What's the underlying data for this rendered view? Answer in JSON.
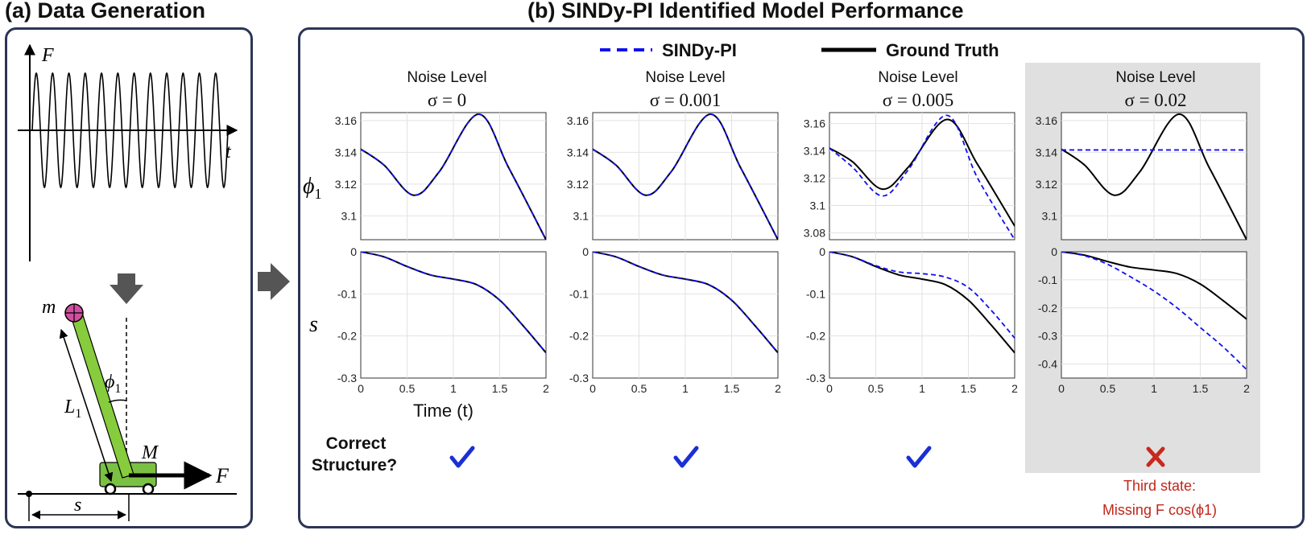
{
  "panel_a": {
    "title": "(a) Data Generation",
    "signal": {
      "y_axis_label": "F",
      "x_axis_label": "t"
    },
    "cart_pole": {
      "bob_mass_label": "m",
      "angle_label": "ϕ",
      "angle_sub": "1",
      "length_label": "L",
      "length_sub": "1",
      "cart_mass_label": "M",
      "force_label": "F",
      "position_label": "s"
    }
  },
  "panel_b": {
    "title": "(b) SINDy-PI Identified Model Performance",
    "legend": [
      {
        "name": "SINDy-PI",
        "style": "dashed",
        "color": "#1010ee"
      },
      {
        "name": "Ground Truth",
        "style": "solid",
        "color": "#000000"
      }
    ],
    "row_labels": {
      "phi": "ϕ",
      "phi_sub": "1",
      "s": "s"
    },
    "x_axis_label": "Time (t)",
    "correct_structure_label": [
      "Correct",
      "Structure?"
    ],
    "failure_note": {
      "line1": "Third state:",
      "line2": "Missing F cos(ϕ1)"
    },
    "colors": {
      "model": "#1010ee",
      "truth": "#000000",
      "check": "#1a2fd6",
      "cross": "#c8281e",
      "failure_bg": "#e0e0e0"
    }
  },
  "chart_data": [
    {
      "type": "line",
      "noise_label": "Noise Level",
      "sigma": "σ = 0",
      "row": "phi1",
      "xlim": [
        0,
        2
      ],
      "ylim": [
        3.085,
        3.165
      ],
      "yticks": [
        "3.16",
        "3.14",
        "3.12",
        "3.1"
      ],
      "xticks": [],
      "series": [
        {
          "name": "Ground Truth",
          "x": [
            0,
            0.25,
            0.57,
            0.85,
            1.27,
            1.6,
            2.0
          ],
          "y": [
            3.142,
            3.132,
            3.113,
            3.128,
            3.164,
            3.13,
            3.085
          ]
        },
        {
          "name": "SINDy-PI",
          "x": [
            0,
            0.25,
            0.57,
            0.85,
            1.27,
            1.6,
            2.0
          ],
          "y": [
            3.142,
            3.132,
            3.113,
            3.128,
            3.164,
            3.13,
            3.085
          ]
        }
      ],
      "structure_correct": true
    },
    {
      "type": "line",
      "row": "s",
      "xlim": [
        0,
        2
      ],
      "ylim": [
        -0.3,
        0
      ],
      "yticks": [
        "0",
        "-0.1",
        "-0.2",
        "-0.3"
      ],
      "xticks": [
        "0",
        "0.5",
        "1",
        "1.5",
        "2"
      ],
      "series": [
        {
          "name": "Ground Truth",
          "x": [
            0,
            0.25,
            0.5,
            0.75,
            1.0,
            1.25,
            1.5,
            1.75,
            2.0
          ],
          "y": [
            0,
            -0.012,
            -0.035,
            -0.055,
            -0.065,
            -0.078,
            -0.115,
            -0.175,
            -0.24
          ]
        },
        {
          "name": "SINDy-PI",
          "x": [
            0,
            0.25,
            0.5,
            0.75,
            1.0,
            1.25,
            1.5,
            1.75,
            2.0
          ],
          "y": [
            0,
            -0.012,
            -0.035,
            -0.055,
            -0.065,
            -0.078,
            -0.115,
            -0.175,
            -0.24
          ]
        }
      ]
    },
    {
      "type": "line",
      "noise_label": "Noise Level",
      "sigma": "σ = 0.001",
      "row": "phi1",
      "xlim": [
        0,
        2
      ],
      "ylim": [
        3.085,
        3.165
      ],
      "yticks": [
        "3.16",
        "3.14",
        "3.12",
        "3.1"
      ],
      "xticks": [],
      "series": [
        {
          "name": "Ground Truth",
          "x": [
            0,
            0.25,
            0.57,
            0.85,
            1.27,
            1.6,
            2.0
          ],
          "y": [
            3.142,
            3.132,
            3.113,
            3.128,
            3.164,
            3.13,
            3.085
          ]
        },
        {
          "name": "SINDy-PI",
          "x": [
            0,
            0.25,
            0.57,
            0.85,
            1.27,
            1.6,
            2.0
          ],
          "y": [
            3.142,
            3.132,
            3.113,
            3.128,
            3.164,
            3.13,
            3.085
          ]
        }
      ],
      "structure_correct": true
    },
    {
      "type": "line",
      "row": "s",
      "xlim": [
        0,
        2
      ],
      "ylim": [
        -0.3,
        0
      ],
      "yticks": [
        "0",
        "-0.1",
        "-0.2",
        "-0.3"
      ],
      "xticks": [
        "0",
        "0.5",
        "1",
        "1.5",
        "2"
      ],
      "series": [
        {
          "name": "Ground Truth",
          "x": [
            0,
            0.25,
            0.5,
            0.75,
            1.0,
            1.25,
            1.5,
            1.75,
            2.0
          ],
          "y": [
            0,
            -0.012,
            -0.035,
            -0.055,
            -0.065,
            -0.078,
            -0.115,
            -0.175,
            -0.24
          ]
        },
        {
          "name": "SINDy-PI",
          "x": [
            0,
            0.25,
            0.5,
            0.75,
            1.0,
            1.25,
            1.5,
            1.75,
            2.0
          ],
          "y": [
            0,
            -0.012,
            -0.035,
            -0.055,
            -0.065,
            -0.078,
            -0.115,
            -0.175,
            -0.24
          ]
        }
      ]
    },
    {
      "type": "line",
      "noise_label": "Noise Level",
      "sigma": "σ = 0.005",
      "row": "phi1",
      "xlim": [
        0,
        2
      ],
      "ylim": [
        3.075,
        3.168
      ],
      "yticks": [
        "3.16",
        "3.14",
        "3.12",
        "3.1",
        "3.08"
      ],
      "xticks": [],
      "series": [
        {
          "name": "Ground Truth",
          "x": [
            0,
            0.25,
            0.57,
            0.85,
            1.27,
            1.6,
            2.0
          ],
          "y": [
            3.142,
            3.132,
            3.112,
            3.128,
            3.163,
            3.13,
            3.085
          ]
        },
        {
          "name": "SINDy-PI",
          "x": [
            0,
            0.25,
            0.57,
            0.85,
            1.27,
            1.6,
            2.0
          ],
          "y": [
            3.142,
            3.128,
            3.107,
            3.126,
            3.166,
            3.12,
            3.075
          ]
        }
      ],
      "structure_correct": true
    },
    {
      "type": "line",
      "row": "s",
      "xlim": [
        0,
        2
      ],
      "ylim": [
        -0.3,
        0
      ],
      "yticks": [
        "0",
        "-0.1",
        "-0.2",
        "-0.3"
      ],
      "xticks": [
        "0",
        "0.5",
        "1",
        "1.5",
        "2"
      ],
      "series": [
        {
          "name": "Ground Truth",
          "x": [
            0,
            0.25,
            0.5,
            0.75,
            1.0,
            1.25,
            1.5,
            1.75,
            2.0
          ],
          "y": [
            0,
            -0.012,
            -0.035,
            -0.055,
            -0.065,
            -0.078,
            -0.115,
            -0.175,
            -0.24
          ]
        },
        {
          "name": "SINDy-PI",
          "x": [
            0,
            0.25,
            0.5,
            0.75,
            1.0,
            1.25,
            1.5,
            1.75,
            2.0
          ],
          "y": [
            0,
            -0.012,
            -0.033,
            -0.048,
            -0.052,
            -0.06,
            -0.085,
            -0.14,
            -0.205
          ]
        }
      ]
    },
    {
      "type": "line",
      "noise_label": "Noise Level",
      "sigma": "σ = 0.02",
      "row": "phi1",
      "xlim": [
        0,
        2
      ],
      "ylim": [
        3.085,
        3.165
      ],
      "yticks": [
        "3.16",
        "3.14",
        "3.12",
        "3.1"
      ],
      "xticks": [],
      "series": [
        {
          "name": "Ground Truth",
          "x": [
            0,
            0.25,
            0.57,
            0.85,
            1.27,
            1.6,
            2.0
          ],
          "y": [
            3.142,
            3.132,
            3.113,
            3.128,
            3.164,
            3.13,
            3.085
          ]
        },
        {
          "name": "SINDy-PI",
          "x": [
            0,
            2.0
          ],
          "y": [
            3.1415,
            3.1415
          ]
        }
      ],
      "structure_correct": false
    },
    {
      "type": "line",
      "row": "s",
      "xlim": [
        0,
        2
      ],
      "ylim": [
        -0.45,
        0
      ],
      "yticks": [
        "0",
        "-0.1",
        "-0.2",
        "-0.3",
        "-0.4"
      ],
      "xticks": [
        "0",
        "0.5",
        "1",
        "1.5",
        "2"
      ],
      "series": [
        {
          "name": "Ground Truth",
          "x": [
            0,
            0.25,
            0.5,
            0.75,
            1.0,
            1.25,
            1.5,
            1.75,
            2.0
          ],
          "y": [
            0,
            -0.012,
            -0.035,
            -0.055,
            -0.065,
            -0.078,
            -0.115,
            -0.175,
            -0.24
          ]
        },
        {
          "name": "SINDy-PI",
          "x": [
            0,
            0.25,
            0.5,
            0.75,
            1.0,
            1.25,
            1.5,
            1.75,
            2.0
          ],
          "y": [
            0,
            -0.014,
            -0.045,
            -0.09,
            -0.14,
            -0.2,
            -0.27,
            -0.34,
            -0.42
          ]
        }
      ]
    }
  ]
}
